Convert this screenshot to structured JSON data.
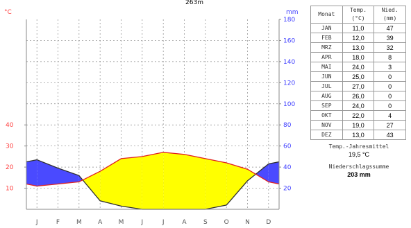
{
  "chart_data": {
    "type": "climate-diagram",
    "title": "263m",
    "left_axis_unit": "°C",
    "right_axis_unit": "mm",
    "left_ticks": [
      10,
      20,
      30,
      40
    ],
    "right_ticks_low": [
      20,
      40,
      60,
      80
    ],
    "right_ticks_high": [
      100,
      120,
      140,
      160,
      180
    ],
    "months_short": [
      "J",
      "F",
      "M",
      "A",
      "M",
      "J",
      "J",
      "A",
      "S",
      "O",
      "N",
      "D"
    ],
    "temp_ylim": [
      0,
      90
    ],
    "series": [
      {
        "name": "Temp.",
        "values": [
          11.0,
          12.0,
          13.0,
          18.0,
          24.0,
          25.0,
          27.0,
          26.0,
          24.0,
          22.0,
          19.0,
          13.0
        ]
      },
      {
        "name": "Nied.",
        "values": [
          47,
          39,
          32,
          8,
          3,
          0,
          0,
          0,
          0,
          4,
          27,
          43
        ]
      }
    ],
    "colors": {
      "temperature_line": "#e02020",
      "precip_line": "#303030",
      "humid_fill": "#4a4aff",
      "arid_fill": "#ffff00",
      "left_axis_text": "#ff4040",
      "right_axis_text": "#4040ff"
    }
  },
  "table": {
    "headers": [
      "Monat",
      "Temp.\n(°C)",
      "Nied.\n(mm)"
    ],
    "rows": [
      [
        "JAN",
        "11,0",
        "47"
      ],
      [
        "FEB",
        "12,0",
        "39"
      ],
      [
        "MRZ",
        "13,0",
        "32"
      ],
      [
        "APR",
        "18,0",
        "8"
      ],
      [
        "MAI",
        "24,0",
        "3"
      ],
      [
        "JUN",
        "25,0",
        "0"
      ],
      [
        "JUL",
        "27,0",
        "0"
      ],
      [
        "AUG",
        "26,0",
        "0"
      ],
      [
        "SEP",
        "24,0",
        "0"
      ],
      [
        "OKT",
        "22,0",
        "4"
      ],
      [
        "NOV",
        "19,0",
        "27"
      ],
      [
        "DEZ",
        "13,0",
        "43"
      ]
    ]
  },
  "summary": {
    "temp_label": "Temp.-Jahresmittel",
    "temp_value": "19,5 °C",
    "precip_label": "Niederschlagssumme",
    "precip_value": "203 mm"
  }
}
